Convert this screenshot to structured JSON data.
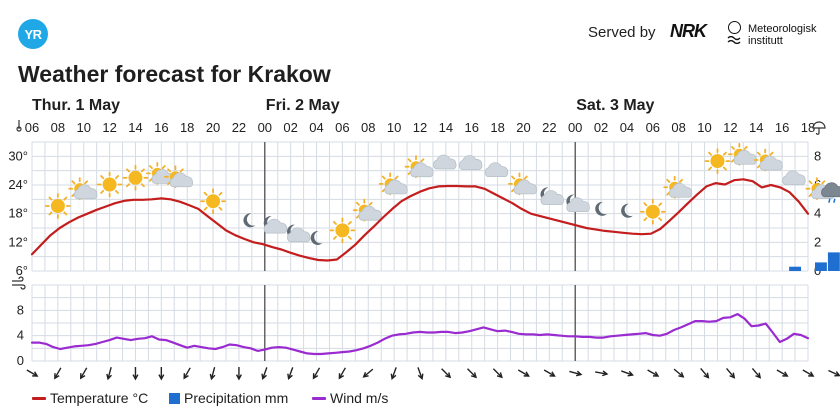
{
  "header": {
    "logo_text": "YR",
    "served_by": "Served by",
    "nrk_logo_text": "NRK",
    "met_logo_text_line1": "Meteorologisk",
    "met_logo_text_line2": "institutt",
    "title": "Weather forecast for Krakow"
  },
  "colors": {
    "temperature": "#c41d1d",
    "precipitation": "#1e6fd0",
    "wind": "#9a2bd0",
    "grid": "#d5dbe3",
    "day_divider": "#444444"
  },
  "legend": {
    "temperature": "Temperature °C",
    "precipitation": "Precipitation mm",
    "wind": "Wind m/s"
  },
  "icons": {
    "temperature_axis": "thermometer-icon",
    "precipitation_axis": "umbrella-icon",
    "wind_axis": "wind-icon"
  },
  "chart_data": {
    "type": "line",
    "days": [
      {
        "label": "Thur. 1 May",
        "start_hour_index": 0
      },
      {
        "label": "Fri. 2 May",
        "start_hour_index": 9
      },
      {
        "label": "Sat. 3 May",
        "start_hour_index": 21
      }
    ],
    "x_ticks": [
      "06",
      "08",
      "10",
      "12",
      "14",
      "16",
      "18",
      "20",
      "22",
      "00",
      "02",
      "04",
      "06",
      "08",
      "10",
      "12",
      "14",
      "16",
      "18",
      "20",
      "22",
      "00",
      "02",
      "04",
      "06",
      "08",
      "10",
      "12",
      "14",
      "16",
      "18"
    ],
    "temperature_axis": {
      "ticks": [
        "6°",
        "12°",
        "18°",
        "24°",
        "30°"
      ],
      "range": [
        6,
        33
      ]
    },
    "precipitation_axis": {
      "ticks": [
        "0",
        "2",
        "4",
        "6",
        "8"
      ],
      "range": [
        0,
        9
      ]
    },
    "wind_axis": {
      "ticks": [
        "0",
        "4",
        "8"
      ],
      "range": [
        0,
        12
      ]
    },
    "series": [
      {
        "name": "Temperature °C",
        "unit": "°C",
        "values": [
          9.5,
          11.5,
          13.5,
          15,
          16.2,
          17.2,
          18,
          18.8,
          19.5,
          20.2,
          20.7,
          20.9,
          20.9,
          21,
          21.2,
          21,
          20.5,
          19.8,
          19,
          17.5,
          16,
          14.5,
          13.5,
          12.7,
          12,
          11.6,
          11,
          10.5,
          9.8,
          9.2,
          8.7,
          8.3,
          8.2,
          8.4,
          9.9,
          11.5,
          13.5,
          15.3,
          17.2,
          19,
          20.6,
          21.7,
          22.6,
          23.3,
          23.7,
          23.8,
          23.8,
          23.7,
          23.7,
          23.2,
          22.2,
          21.2,
          20.2,
          19,
          18,
          17.5,
          17,
          16.5,
          16,
          15.5,
          15,
          14.7,
          14.4,
          14.2,
          14,
          13.8,
          13.7,
          13.8,
          14.8,
          16.5,
          18.3,
          20.2,
          22,
          23.7,
          24.4,
          24.1,
          25,
          25.2,
          24.8,
          23.5,
          24,
          23.5,
          22.5,
          20.5,
          18
        ]
      },
      {
        "name": "Precipitation mm",
        "unit": "mm",
        "bars": [
          {
            "hour_index": 29.5,
            "value": 0.3
          },
          {
            "hour_index": 30.5,
            "value": 0.6
          },
          {
            "hour_index": 31,
            "value": 1.3
          }
        ]
      },
      {
        "name": "Wind m/s",
        "unit": "m/s",
        "values": [
          2.9,
          2.9,
          2.7,
          2.2,
          1.9,
          2.1,
          2.3,
          2.4,
          2.5,
          2.7,
          3,
          3.3,
          3.7,
          3.5,
          3.3,
          3.5,
          3.6,
          3.9,
          3.4,
          3.3,
          2.9,
          2.5,
          2.1,
          2.4,
          2.2,
          2,
          1.9,
          2.2,
          2.6,
          2.5,
          2.2,
          2,
          1.6,
          1.8,
          2.1,
          2.2,
          2.1,
          1.8,
          1.5,
          1.2,
          1.1,
          1.1,
          1.2,
          1.3,
          1.4,
          1.5,
          1.7,
          2,
          2.4,
          2.9,
          3.5,
          4,
          4.2,
          4.3,
          4.5,
          4.6,
          4.5,
          4.5,
          4.6,
          4.6,
          4.4,
          4.5,
          4.7,
          5,
          5.3,
          5,
          4.7,
          4.8,
          4.6,
          4.3,
          4.2,
          4.2,
          4.1,
          4.2,
          4.1,
          4,
          3.9,
          3.9,
          3.8,
          3.8,
          3.7,
          3.7,
          3.9,
          4,
          4.1,
          4.2,
          4.3,
          4.4,
          4.1,
          4,
          4.3,
          4.9,
          5.3,
          5.8,
          6.3,
          6.3,
          6.2,
          6.3,
          6.8,
          6.9,
          7.4,
          6.7,
          5.5,
          5.6,
          5.9,
          4.5,
          3,
          3.5,
          4.3,
          4.1,
          3.6
        ]
      }
    ],
    "weather_symbols": [
      {
        "hour_index": 1,
        "icon": "sun-icon"
      },
      {
        "hour_index": 2,
        "icon": "partly-cloudy-icon"
      },
      {
        "hour_index": 3,
        "icon": "sun-icon"
      },
      {
        "hour_index": 4,
        "icon": "sun-icon"
      },
      {
        "hour_index": 5,
        "icon": "partly-cloudy-icon"
      },
      {
        "hour_index": 5.7,
        "icon": "partly-cloudy-icon"
      },
      {
        "hour_index": 7,
        "icon": "sun-icon"
      },
      {
        "hour_index": 8.4,
        "icon": "moon-icon"
      },
      {
        "hour_index": 9.3,
        "icon": "partly-cloudy-night-icon"
      },
      {
        "hour_index": 10.2,
        "icon": "partly-cloudy-night-icon"
      },
      {
        "hour_index": 11,
        "icon": "moon-icon"
      },
      {
        "hour_index": 12,
        "icon": "sun-icon"
      },
      {
        "hour_index": 13,
        "icon": "partly-cloudy-icon"
      },
      {
        "hour_index": 14,
        "icon": "partly-cloudy-icon"
      },
      {
        "hour_index": 15,
        "icon": "partly-cloudy-icon"
      },
      {
        "hour_index": 16,
        "icon": "cloud-icon"
      },
      {
        "hour_index": 17,
        "icon": "cloud-icon"
      },
      {
        "hour_index": 18,
        "icon": "cloud-icon"
      },
      {
        "hour_index": 19,
        "icon": "partly-cloudy-icon"
      },
      {
        "hour_index": 20,
        "icon": "partly-cloudy-night-icon"
      },
      {
        "hour_index": 21,
        "icon": "partly-cloudy-night-icon"
      },
      {
        "hour_index": 22,
        "icon": "moon-icon"
      },
      {
        "hour_index": 23,
        "icon": "moon-icon"
      },
      {
        "hour_index": 24,
        "icon": "sun-icon"
      },
      {
        "hour_index": 25,
        "icon": "partly-cloudy-icon"
      },
      {
        "hour_index": 26.5,
        "icon": "sun-icon"
      },
      {
        "hour_index": 27.5,
        "icon": "partly-cloudy-icon"
      },
      {
        "hour_index": 28.5,
        "icon": "partly-cloudy-icon"
      },
      {
        "hour_index": 29.5,
        "icon": "cloud-icon"
      },
      {
        "hour_index": 30.5,
        "icon": "partly-cloudy-icon"
      },
      {
        "hour_index": 31,
        "icon": "rain-cloud-icon"
      }
    ],
    "wind_direction_deg": [
      120,
      210,
      210,
      195,
      180,
      180,
      210,
      195,
      180,
      200,
      200,
      210,
      210,
      230,
      200,
      160,
      135,
      135,
      135,
      120,
      120,
      105,
      100,
      110,
      120,
      130,
      140,
      140,
      140,
      120,
      120,
      115
    ]
  }
}
